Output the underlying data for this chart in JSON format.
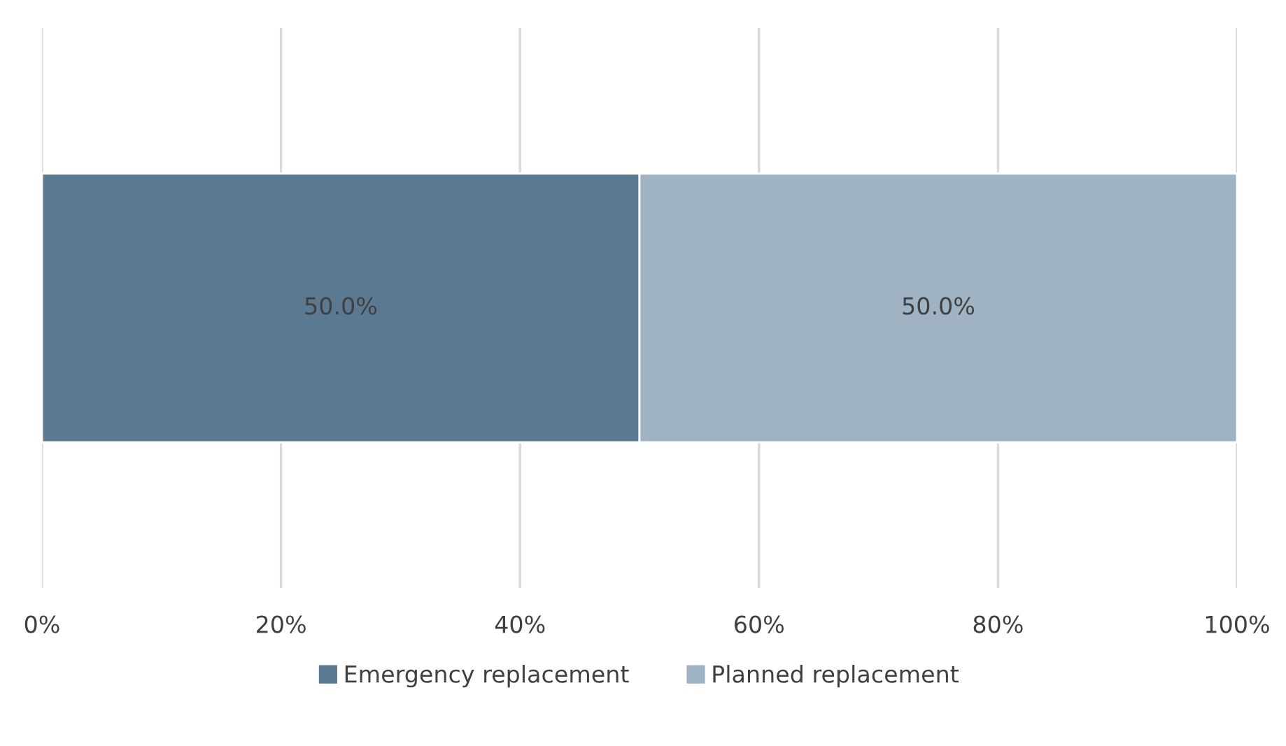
{
  "chart_data": {
    "type": "bar",
    "orientation": "horizontal",
    "stacked": true,
    "categories": [
      null
    ],
    "series": [
      {
        "name": "Emergency replacement",
        "color": "#5b7a91",
        "values": [
          50
        ],
        "value_labels": [
          "50.0%"
        ]
      },
      {
        "name": "Planned replacement",
        "color": "#9fb3c3",
        "values": [
          50
        ],
        "value_labels": [
          "50.0%"
        ]
      }
    ],
    "xlim": [
      0,
      100
    ],
    "xticks": [
      {
        "value": 0,
        "label": "0%"
      },
      {
        "value": 20,
        "label": "20%"
      },
      {
        "value": 40,
        "label": "40%"
      },
      {
        "value": 60,
        "label": "60%"
      },
      {
        "value": 80,
        "label": "80%"
      },
      {
        "value": 100,
        "label": "100%"
      }
    ],
    "grid": "x",
    "legend": "bottom"
  }
}
